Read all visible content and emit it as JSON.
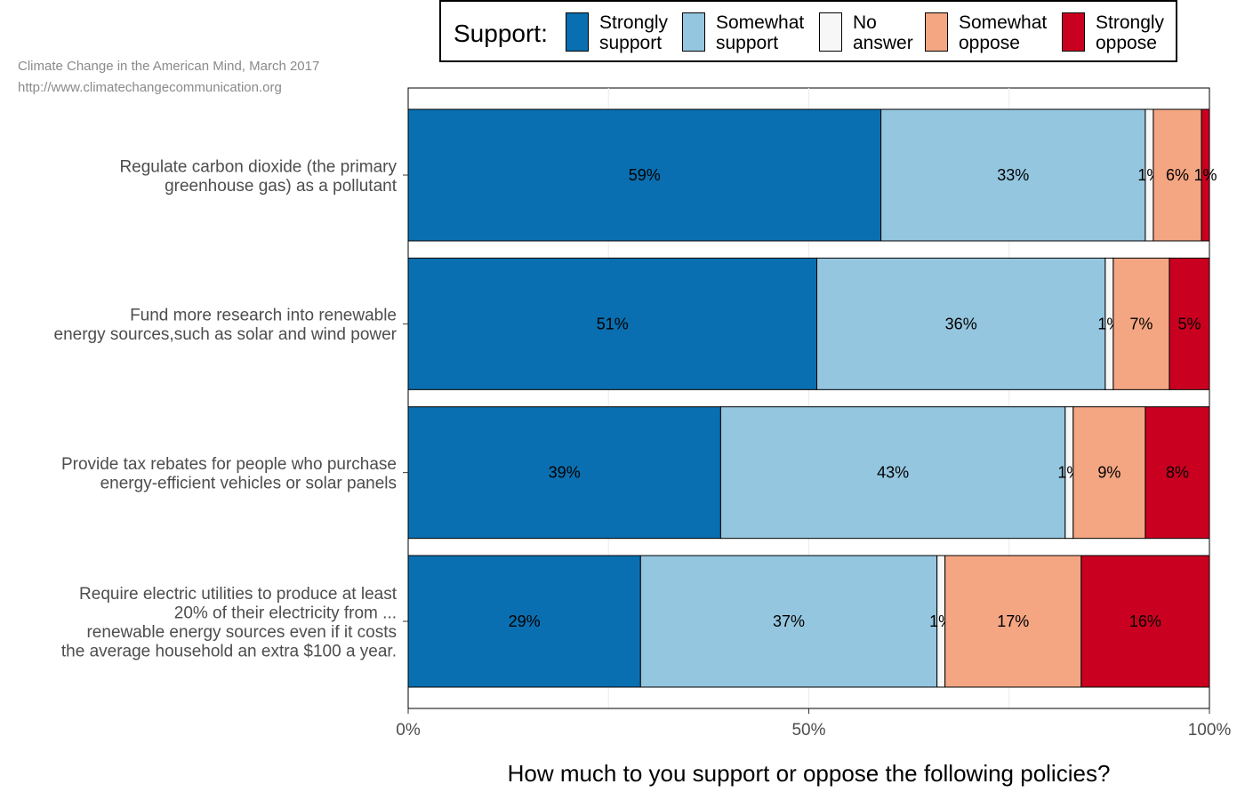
{
  "source": {
    "line1": "Climate Change in the American Mind, March 2017",
    "line2": "http://www.climatechangecommunication.org"
  },
  "legend": {
    "title": "Support:",
    "items": [
      {
        "label": "Strongly\nsupport",
        "color": "#0a6fb0"
      },
      {
        "label": "Somewhat\nsupport",
        "color": "#94c6df"
      },
      {
        "label": "No\nanswer",
        "color": "#f7f7f7"
      },
      {
        "label": "Somewhat\noppose",
        "color": "#f4a683"
      },
      {
        "label": "Strongly\noppose",
        "color": "#ca0020"
      }
    ]
  },
  "chart_data": {
    "type": "bar",
    "orientation": "horizontal",
    "stacked": true,
    "xlabel": "How much to you support or oppose the following policies?",
    "ylabel": "",
    "xlim": [
      0,
      100
    ],
    "x_ticks": [
      "0%",
      "50%",
      "100%"
    ],
    "categories": [
      "Regulate carbon dioxide (the primary\ngreenhouse gas) as a pollutant",
      "Fund more research into renewable\nenergy sources,such as solar and wind power",
      "Provide tax rebates for people who purchase\nenergy-efficient vehicles or solar panels",
      "Require electric utilities to produce at least\n20% of their electricity from ...\nrenewable energy sources even if it costs\nthe average household an extra $100 a year."
    ],
    "series": [
      {
        "name": "Strongly support",
        "values": [
          59,
          51,
          39,
          29
        ],
        "labels": [
          "59%",
          "51%",
          "39%",
          "29%"
        ]
      },
      {
        "name": "Somewhat support",
        "values": [
          33,
          36,
          43,
          37
        ],
        "labels": [
          "33%",
          "36%",
          "43%",
          "37%"
        ]
      },
      {
        "name": "No answer",
        "values": [
          1,
          1,
          1,
          1
        ],
        "labels": [
          "1%",
          "1%",
          "1%",
          "1%"
        ]
      },
      {
        "name": "Somewhat oppose",
        "values": [
          6,
          7,
          9,
          17
        ],
        "labels": [
          "6%",
          "7%",
          "9%",
          "17%"
        ]
      },
      {
        "name": "Strongly oppose",
        "values": [
          1,
          5,
          8,
          16
        ],
        "labels": [
          "1%",
          "5%",
          "8%",
          "16%"
        ]
      }
    ],
    "grid": true,
    "legend_position": "top"
  }
}
